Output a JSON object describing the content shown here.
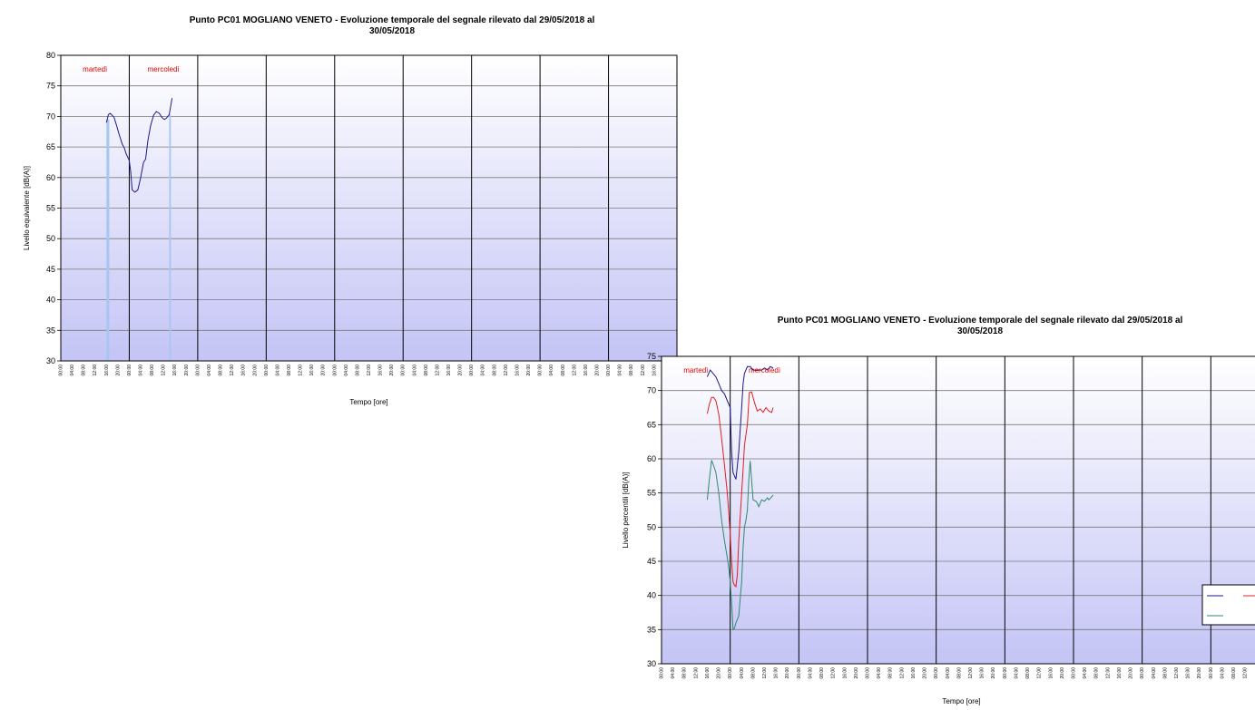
{
  "chart_data": [
    {
      "id": "c1",
      "type": "line",
      "title_lines": [
        "Punto PC01 MOGLIANO VENETO - Evoluzione temporale del segnale rilevato dal 29/05/2018 al",
        "30/05/2018"
      ],
      "xlabel": "Tempo [ore]",
      "ylabel": "Livello equivalente [dB(A)]",
      "ylim": [
        30,
        80
      ],
      "ystep": 5,
      "xlim": [
        0,
        216
      ],
      "day_labels": [
        {
          "x": 12,
          "text": "martedì"
        },
        {
          "x": 36,
          "text": "mercoledì"
        }
      ],
      "x_tick_labels": [
        "00:00",
        "04:00",
        "08:00",
        "12:00",
        "16:00",
        "20:00"
      ],
      "x_tick_cycles": 9,
      "grid": true,
      "legend": null,
      "series": [
        {
          "color": "#1a1a8a",
          "x": [
            16,
            16.7,
            17.3,
            18,
            18.7,
            19.5,
            20.5,
            21.5,
            22.3,
            22.8,
            23.3,
            24,
            24.5,
            25,
            26,
            27,
            28,
            29,
            29.7,
            30,
            30.5,
            31.5,
            32.5,
            33.5,
            34.5,
            35.5,
            36.3,
            37,
            37.5,
            38,
            39
          ],
          "y": [
            69,
            70.3,
            70.5,
            70.2,
            69.8,
            68.6,
            67,
            65.5,
            64.8,
            64,
            63.5,
            62.8,
            61,
            58,
            57.6,
            58,
            60,
            62.5,
            63,
            64,
            66,
            68.5,
            70.2,
            70.8,
            70.5,
            69.8,
            69.5,
            69.7,
            70,
            70.3,
            73
          ]
        }
      ],
      "bars": [
        {
          "color": "#a8c6f2",
          "x0": 16,
          "x1": 17,
          "y": 69.5
        },
        {
          "color": "#a8c6f2",
          "x0": 38,
          "x1": 38.6,
          "y": 70.3
        }
      ]
    },
    {
      "id": "c2",
      "type": "line",
      "title_lines": [
        "Punto PC01 MOGLIANO VENETO - Evoluzione temporale del segnale rilevato dal 29/05/2018 al",
        "30/05/2018"
      ],
      "xlabel": "Tempo [ore]",
      "ylabel": "Livello percentili [dB(A)]",
      "ylim": [
        30,
        75
      ],
      "ystep": 5,
      "xlim": [
        0,
        216
      ],
      "day_labels": [
        {
          "x": 12,
          "text": "martedì"
        },
        {
          "x": 36,
          "text": "mercoledì"
        }
      ],
      "x_tick_labels": [
        "00:00",
        "04:00",
        "08:00",
        "12:00",
        "16:00",
        "20:00"
      ],
      "x_tick_cycles": 9,
      "grid": true,
      "legend": "right",
      "series": [
        {
          "color": "#1a1a8a",
          "x": [
            16,
            17,
            18,
            19,
            20,
            21,
            22,
            23,
            24,
            24.5,
            25,
            25.5,
            26,
            27,
            28,
            28.5,
            29,
            30,
            31,
            32,
            33,
            34,
            35,
            36,
            37,
            38,
            39
          ],
          "y": [
            72,
            73,
            72.5,
            72,
            71,
            70,
            69.5,
            68.5,
            67.5,
            61,
            58,
            57.5,
            57,
            61,
            67.5,
            71,
            72.5,
            73.5,
            73.5,
            73,
            73,
            73,
            73,
            73.3,
            73,
            73.5,
            73.3
          ]
        },
        {
          "color": "#e02020",
          "x": [
            16,
            16.7,
            17.5,
            18.2,
            19,
            20,
            21,
            22,
            23,
            23.5,
            24,
            24.5,
            25,
            25.5,
            26,
            26.5,
            27,
            28,
            28.5,
            29,
            30,
            30.7,
            31.5,
            32.5,
            33.5,
            34.5,
            35.5,
            36.5,
            37.5,
            38.5,
            39
          ],
          "y": [
            66.6,
            68,
            69,
            69,
            68.5,
            66.5,
            63,
            59,
            55,
            52,
            49,
            45,
            42,
            41.5,
            41.3,
            43,
            48,
            55,
            58.5,
            62,
            65,
            69.7,
            69.8,
            68.2,
            67,
            67.3,
            66.8,
            67.5,
            67,
            66.8,
            67.5
          ]
        },
        {
          "color": "#2e8a6e",
          "x": [
            16,
            16.7,
            17.5,
            18.2,
            19,
            20,
            21,
            22,
            23,
            23.5,
            24,
            24.5,
            25,
            25.5,
            26,
            27,
            28,
            28.5,
            29,
            29.5,
            30,
            30.5,
            31,
            32,
            33,
            33.5,
            34,
            35,
            36,
            37,
            37.5,
            38,
            39
          ],
          "y": [
            54,
            57,
            59.8,
            59,
            58,
            55,
            51,
            48,
            45.5,
            44,
            42,
            39,
            35,
            35.2,
            36,
            37,
            42,
            47,
            50,
            51,
            52.5,
            57,
            59.7,
            54,
            53.8,
            53.5,
            53,
            54,
            53.8,
            54.3,
            54,
            54.2,
            54.7
          ]
        }
      ],
      "bars": []
    }
  ]
}
